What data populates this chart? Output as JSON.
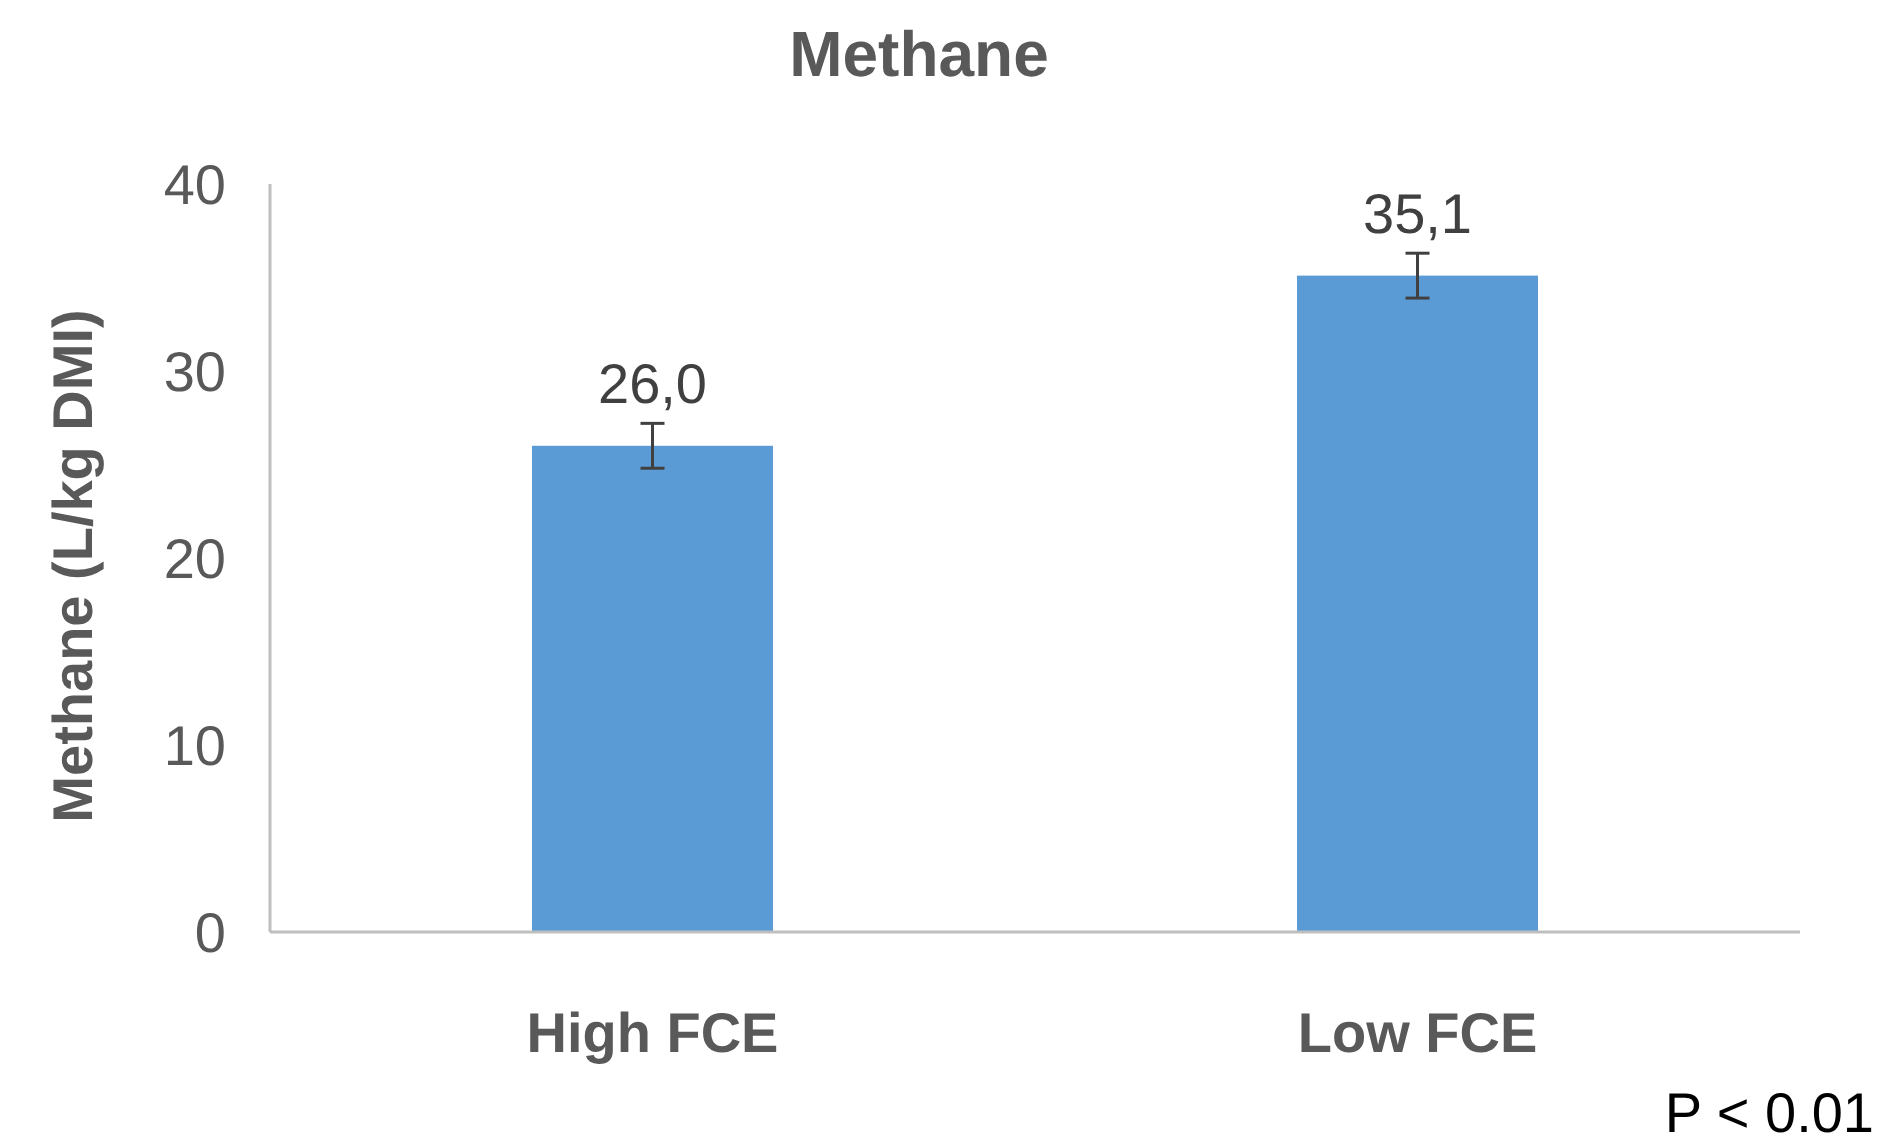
{
  "chart_data": {
    "type": "bar",
    "title": "Methane",
    "ylabel": "Methane (L/kg DMI)",
    "categories": [
      "High FCE",
      "Low FCE"
    ],
    "values": [
      26.0,
      35.1
    ],
    "color": "#5b9bd5",
    "errors": [
      1.2,
      1.2
    ],
    "value_labels": [
      "26,0",
      "35,1"
    ],
    "ylim": [
      0,
      40
    ],
    "yticks": [
      0,
      10,
      20,
      30,
      40
    ],
    "grid": false,
    "annotations": [
      "P < 0.01"
    ]
  }
}
